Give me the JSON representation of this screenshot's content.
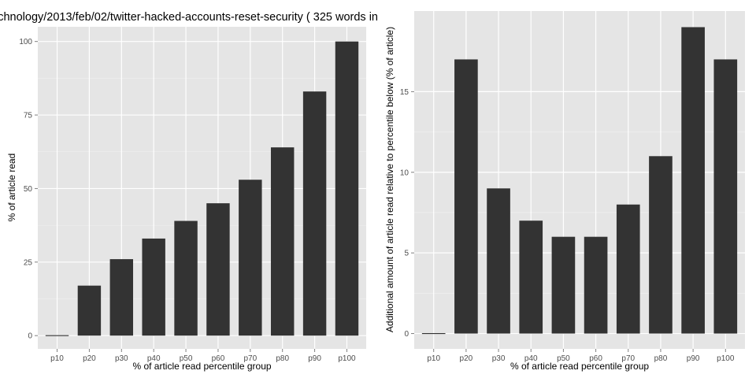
{
  "title": "chnology/2013/feb/02/twitter-hacked-accounts-reset-security ( 325 words in",
  "chart_data": [
    {
      "type": "bar",
      "categories": [
        "p10",
        "p20",
        "p30",
        "p40",
        "p50",
        "p60",
        "p70",
        "p80",
        "p90",
        "p100"
      ],
      "values": [
        0,
        17,
        26,
        33,
        39,
        45,
        53,
        64,
        83,
        100
      ],
      "xlabel": "% of article read percentile group",
      "ylabel": "% of article read",
      "ylim": [
        -4.5,
        105
      ],
      "yticks": [
        0,
        25,
        50,
        75,
        100
      ],
      "grid": true,
      "bar_color": "#333333",
      "panel_color": "#e5e5e5"
    },
    {
      "type": "bar",
      "categories": [
        "p10",
        "p20",
        "p30",
        "p40",
        "p50",
        "p60",
        "p70",
        "p80",
        "p90",
        "p100"
      ],
      "values": [
        0,
        17,
        9,
        7,
        6,
        6,
        8,
        11,
        19,
        17
      ],
      "xlabel": "% of article read percentile group",
      "ylabel": "Additional amount of article read relative to percentile below (% of article)",
      "ylim": [
        -0.95,
        20
      ],
      "yticks": [
        0,
        5,
        10,
        15
      ],
      "grid": true,
      "bar_color": "#333333",
      "panel_color": "#e5e5e5"
    }
  ]
}
